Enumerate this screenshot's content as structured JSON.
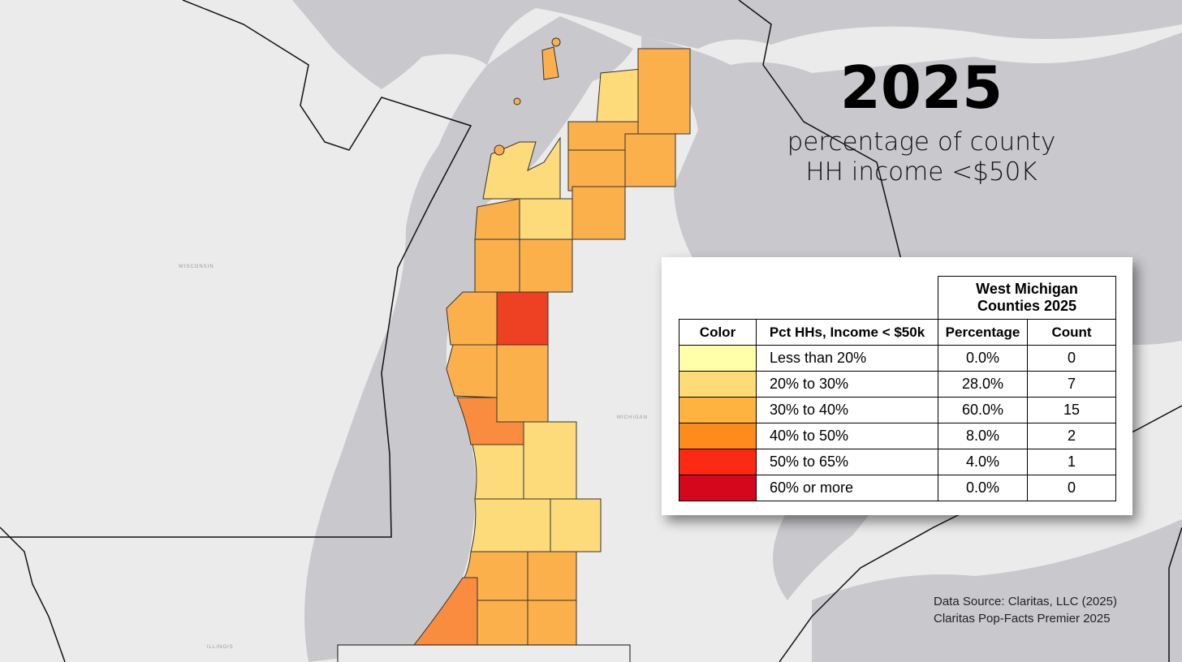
{
  "title": "2025",
  "subtitle": [
    "percentage of county",
    "HH income <$50K"
  ],
  "map_labels": [
    "WISCONSIN",
    "MICHIGAN",
    "ILLINOIS"
  ],
  "table": {
    "group_header": "West Michigan Counties 2025",
    "columns": [
      "Color",
      "Pct HHs, Income < $50k",
      "Percentage",
      "Count"
    ],
    "rows": [
      {
        "color": "#ffffaa",
        "range": "Less than 20%",
        "percentage": "0.0%",
        "count": 0
      },
      {
        "color": "#fedb77",
        "range": "20% to 30%",
        "percentage": "28.0%",
        "count": 7
      },
      {
        "color": "#feb23f",
        "range": "30% to 40%",
        "percentage": "60.0%",
        "count": 15
      },
      {
        "color": "#fd8c1c",
        "range": "40% to 50%",
        "percentage": "8.0%",
        "count": 2
      },
      {
        "color": "#fc2a13",
        "range": "50% to 65%",
        "percentage": "4.0%",
        "count": 1
      },
      {
        "color": "#d4071c",
        "range": "60% or more",
        "percentage": "0.0%",
        "count": 0
      }
    ]
  },
  "source": [
    "Data Source: Claritas, LLC (2025)",
    "Claritas Pop-Facts Premier 2025"
  ]
}
